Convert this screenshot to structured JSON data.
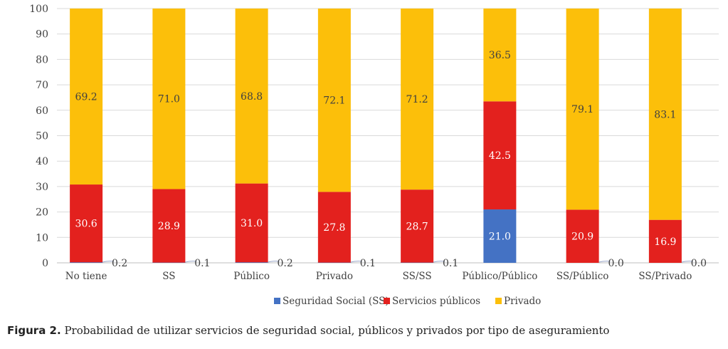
{
  "chart_data": {
    "type": "bar",
    "stacked": true,
    "categories": [
      "No tiene",
      "SS",
      "Público",
      "Privado",
      "SS/SS",
      "Público/Público",
      "SS/Público",
      "SS/Privado"
    ],
    "series": [
      {
        "name": "Seguridad Social (SS)",
        "color": "#4472C4",
        "values": [
          0.2,
          0.1,
          0.2,
          0.1,
          0.1,
          21.0,
          0.0,
          0.0
        ],
        "labels": [
          "0.2",
          "0.1",
          "0.2",
          "0.1",
          "0.1",
          "21.0",
          "0.0",
          "0.0"
        ]
      },
      {
        "name": "Servicios públicos",
        "color": "#E3211E",
        "values": [
          30.6,
          28.9,
          31.0,
          27.8,
          28.7,
          42.5,
          20.9,
          16.9
        ],
        "labels": [
          "30.6",
          "28.9",
          "31.0",
          "27.8",
          "28.7",
          "42.5",
          "20.9",
          "16.9"
        ]
      },
      {
        "name": "Privado",
        "color": "#FCBF0A",
        "values": [
          69.2,
          71.0,
          68.8,
          72.1,
          71.2,
          36.5,
          79.1,
          83.1
        ],
        "labels": [
          "69.2",
          "71.0",
          "68.8",
          "72.1",
          "71.2",
          "36.5",
          "79.1",
          "83.1"
        ]
      }
    ],
    "y_ticks": [
      "0",
      "10",
      "20",
      "30",
      "40",
      "50",
      "60",
      "70",
      "80",
      "90",
      "100"
    ],
    "ylim": [
      0,
      100
    ],
    "grid": true,
    "legend_position": "bottom"
  },
  "caption": {
    "prefix": "Figura 2.",
    "text": " Probabilidad de utilizar servicios de seguridad social, públicos y privados por tipo de aseguramiento"
  }
}
